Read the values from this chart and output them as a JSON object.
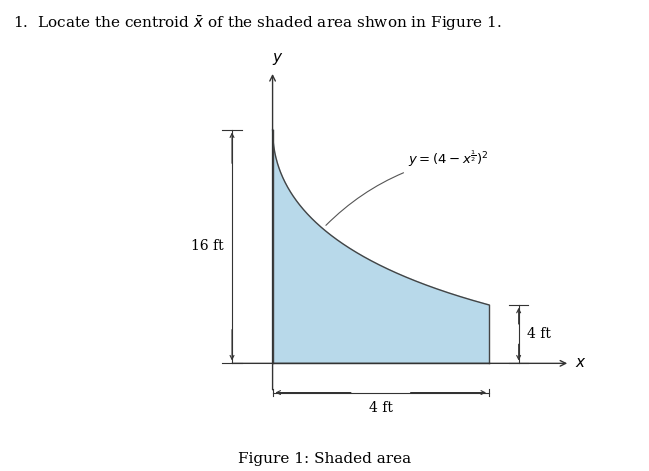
{
  "title_text": "1.  Locate the centroid $\\bar{x}$ of the shaded area shwon in Figure 1.",
  "figure_caption": "Figure 1: Shaded area",
  "shaded_color": "#b8d9ea",
  "shaded_edge_color": "#444444",
  "curve_color": "#333333",
  "axis_color": "#333333",
  "annotation_curve": "$y = (4 - x^{\\frac{1}{2}})^2$",
  "label_16ft": "16 ft",
  "label_4ft_right": "4 ft",
  "label_4ft_horiz": "4 ft",
  "plot_xlim": [
    -1.2,
    6.0
  ],
  "plot_ylim": [
    -3.5,
    21
  ],
  "fig_width": 6.49,
  "fig_height": 4.71,
  "dpi": 100,
  "background_color": "#ffffff"
}
